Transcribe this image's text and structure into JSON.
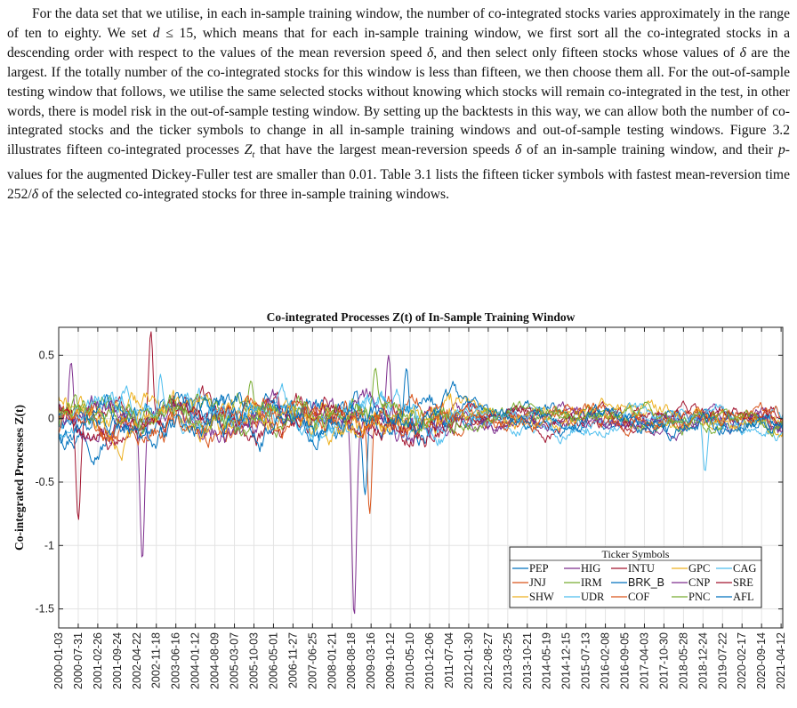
{
  "paragraph": {
    "text": "For the data set that we utilise, in each in-sample training window, the number of co-integrated stocks varies approximately in the range of ten to eighty. We set d ≤ 15, which means that for each in-sample training window, we first sort all the co-integrated stocks in a descending order with respect to the values of the mean reversion speed δ, and then select only fifteen stocks whose values of δ are the largest. If the totally number of the co-integrated stocks for this window is less than fifteen, we then choose them all. For the out-of-sample testing window that follows, we utilise the same selected stocks without knowing which stocks will remain co-integrated in the test, in other words, there is model risk in the out-of-sample testing window. By setting up the backtests in this way, we can allow both the number of co-integrated stocks and the ticker symbols to change in all in-sample training windows and out-of-sample testing windows. Figure 3.2 illustrates fifteen co-integrated processes Zt that have the largest mean-reversion speeds δ of an in-sample training window, and their p-values for the augmented Dickey-Fuller test are smaller than 0.01. Table 3.1 lists the fifteen ticker symbols with fastest mean-reversion time 252/δ of the selected co-integrated stocks for three in-sample training windows."
  },
  "chart_data": {
    "type": "line",
    "title": "Co-integrated Processes Z(t) of In-Sample Training Window",
    "xlabel": "",
    "ylabel": "Co-integrated Processes Z(t)",
    "ylim": [
      -1.65,
      0.72
    ],
    "yticks": [
      0.5,
      0,
      -0.5,
      -1,
      -1.5
    ],
    "ytick_labels": [
      "0.5",
      "0",
      "-0.5",
      "-1",
      "-1.5"
    ],
    "x_range": [
      "2000-01-03",
      "2021-04-30"
    ],
    "x_ticks": [
      "2000-01-03",
      "2000-07-31",
      "2001-02-26",
      "2001-09-24",
      "2002-04-22",
      "2002-11-18",
      "2003-06-16",
      "2004-01-12",
      "2004-08-09",
      "2005-03-07",
      "2005-10-03",
      "2006-05-01",
      "2006-11-27",
      "2007-06-25",
      "2008-01-21",
      "2008-08-18",
      "2009-03-16",
      "2009-10-12",
      "2010-05-10",
      "2010-12-06",
      "2011-07-04",
      "2012-01-30",
      "2012-08-27",
      "2013-03-25",
      "2013-10-21",
      "2014-05-19",
      "2014-12-15",
      "2015-07-13",
      "2016-02-08",
      "2016-09-05",
      "2017-04-03",
      "2017-10-30",
      "2018-05-28",
      "2018-12-24",
      "2019-07-22",
      "2020-02-17",
      "2020-09-14",
      "2021-04-12"
    ],
    "grid": true,
    "legend": {
      "title": "Ticker Symbols",
      "placement": "bottom-right",
      "columns": 5
    },
    "series": [
      {
        "name": "PEP",
        "color": "#0072BD",
        "events": []
      },
      {
        "name": "HIG",
        "color": "#7E2F8E",
        "events": [
          {
            "date": "2008-09-15",
            "value": -1.57
          },
          {
            "date": "2000-05-15",
            "value": 0.45
          }
        ]
      },
      {
        "name": "INTU",
        "color": "#A2142F",
        "events": [
          {
            "date": "2002-09-20",
            "value": 0.69
          },
          {
            "date": "2000-08-01",
            "value": -0.8
          }
        ]
      },
      {
        "name": "GPC",
        "color": "#EDB120",
        "events": []
      },
      {
        "name": "CAG",
        "color": "#4DBEEE",
        "events": [
          {
            "date": "2019-01-15",
            "value": -0.42
          }
        ]
      },
      {
        "name": "JNJ",
        "color": "#D95319",
        "events": [
          {
            "date": "2009-03-01",
            "value": -0.75
          }
        ]
      },
      {
        "name": "IRM",
        "color": "#77AC30",
        "events": [
          {
            "date": "2005-09-01",
            "value": 0.3
          }
        ]
      },
      {
        "name": "BRK_B",
        "color": "#0072BD",
        "events": [
          {
            "date": "2009-01-10",
            "value": -0.6
          },
          {
            "date": "2010-04-01",
            "value": 0.4
          }
        ]
      },
      {
        "name": "CNP",
        "color": "#7E2F8E",
        "events": [
          {
            "date": "2002-06-20",
            "value": -1.12
          },
          {
            "date": "2009-09-20",
            "value": 0.5
          }
        ]
      },
      {
        "name": "SRE",
        "color": "#A2142F",
        "events": []
      },
      {
        "name": "SHW",
        "color": "#EDB120",
        "events": []
      },
      {
        "name": "UDR",
        "color": "#4DBEEE",
        "events": [
          {
            "date": "2003-01-01",
            "value": 0.35
          }
        ]
      },
      {
        "name": "COF",
        "color": "#D95319",
        "events": []
      },
      {
        "name": "PNC",
        "color": "#77AC30",
        "events": [
          {
            "date": "2009-05-01",
            "value": 0.4
          }
        ]
      },
      {
        "name": "AFL",
        "color": "#0072BD",
        "events": []
      }
    ]
  }
}
